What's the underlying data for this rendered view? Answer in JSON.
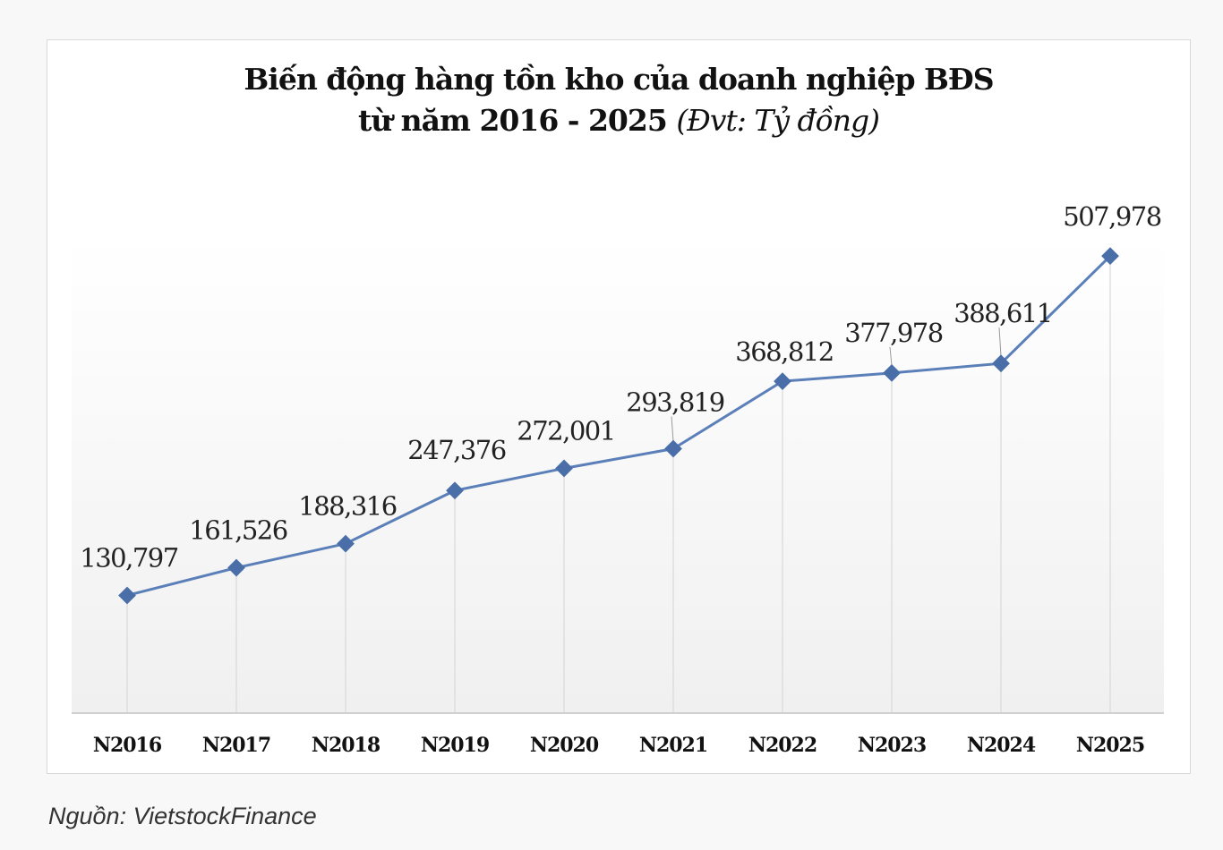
{
  "chart_data": {
    "type": "line",
    "title_line1": "Biến động hàng tồn kho của doanh nghiệp BĐS",
    "title_line2": "từ năm 2016 - 2025",
    "title_unit": "(Đvt: Tỷ đồng)",
    "categories": [
      "N2016",
      "N2017",
      "N2018",
      "N2019",
      "N2020",
      "N2021",
      "N2022",
      "N2023",
      "N2024",
      "N2025"
    ],
    "values": [
      130797,
      161526,
      188316,
      247376,
      272001,
      293819,
      368812,
      377978,
      388611,
      507978
    ],
    "data_labels": [
      "130,797",
      "161,526",
      "188,316",
      "247,376",
      "272,001",
      "293,819",
      "368,812",
      "377,978",
      "388,611",
      "507,978"
    ],
    "ylim": [
      0,
      530000
    ],
    "grid": "vertical lines",
    "legend": "none",
    "colors": {
      "line": "#5b7fb9",
      "marker": "#4a6ea8",
      "grid": "#d9d9d9"
    }
  },
  "source": "Nguồn: VietstockFinance"
}
